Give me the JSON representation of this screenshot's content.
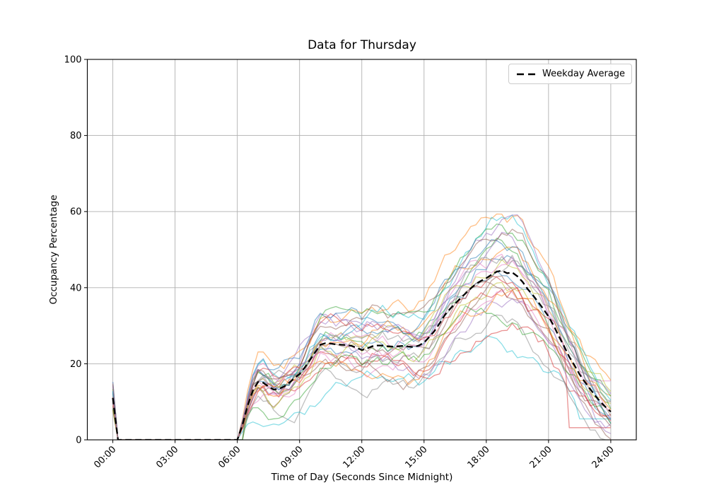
{
  "figure": {
    "background": "#ffffff"
  },
  "chart_data": {
    "type": "line",
    "title": "Data for Thursday",
    "xlabel": "Time of Day (Seconds Since Midnight)",
    "ylabel": "Occupancy Percentage",
    "ylim": [
      0,
      100
    ],
    "xlim_hours": [
      -1.23,
      25.23
    ],
    "grid": true,
    "grid_color": "#b0b0b0",
    "y_ticks": [
      0,
      20,
      40,
      60,
      80,
      100
    ],
    "x_ticks": [
      {
        "hour": 0,
        "label": "00:00"
      },
      {
        "hour": 3,
        "label": "03:00"
      },
      {
        "hour": 6,
        "label": "06:00"
      },
      {
        "hour": 9,
        "label": "09:00"
      },
      {
        "hour": 12,
        "label": "12:00"
      },
      {
        "hour": 15,
        "label": "15:00"
      },
      {
        "hour": 18,
        "label": "18:00"
      },
      {
        "hour": 21,
        "label": "21:00"
      },
      {
        "hour": 24,
        "label": "24:00"
      }
    ],
    "legend": {
      "position": "upper-right",
      "entries": [
        {
          "label": "Weekday Average",
          "color": "#000000",
          "dash": true
        }
      ]
    },
    "average_series": {
      "name": "Weekday Average",
      "color": "#000000",
      "dash_pattern": "9 5",
      "line_width": 2.3,
      "x_hours": [
        0,
        0.25,
        6,
        6.25,
        6.5,
        6.75,
        7,
        7.25,
        7.5,
        7.75,
        8,
        8.25,
        8.5,
        8.75,
        9,
        9.25,
        9.5,
        9.75,
        10,
        10.25,
        10.5,
        10.75,
        11,
        11.25,
        11.5,
        11.75,
        12,
        12.25,
        12.5,
        12.75,
        13,
        13.25,
        13.5,
        13.75,
        14,
        14.25,
        14.5,
        14.75,
        15,
        15.25,
        15.5,
        15.75,
        16,
        16.25,
        16.5,
        16.75,
        17,
        17.25,
        17.5,
        17.75,
        18,
        18.25,
        18.5,
        18.75,
        19,
        19.25,
        19.5,
        19.75,
        20,
        20.25,
        20.5,
        20.75,
        21,
        21.25,
        21.5,
        21.75,
        22,
        22.25,
        22.5,
        22.75,
        23,
        23.25,
        23.5,
        23.75,
        24
      ],
      "values": [
        11,
        0,
        0,
        4,
        9,
        13,
        15.2,
        15,
        14,
        13.2,
        13.4,
        14,
        15,
        16.2,
        17.3,
        19,
        21,
        23,
        25,
        25.4,
        25.3,
        25.1,
        25,
        24.9,
        24.7,
        24.2,
        23.6,
        24,
        24.6,
        24.8,
        24.8,
        24.6,
        24.5,
        24.6,
        24.7,
        24.5,
        24.4,
        24.8,
        25.6,
        27,
        28.6,
        30.6,
        32.8,
        34.4,
        35.8,
        37.2,
        38.5,
        39.8,
        41,
        41.8,
        42.5,
        43.4,
        44.2,
        44.5,
        43.8,
        44,
        43,
        41.5,
        39.6,
        38,
        36.2,
        34.4,
        32.4,
        30,
        27.2,
        24.6,
        21.8,
        19.6,
        17.2,
        15.2,
        13.4,
        11.6,
        10,
        8.6,
        7.4
      ]
    },
    "individual_series": {
      "count": 28,
      "alpha": 0.5,
      "line_width": 1.3,
      "colors": [
        "#1f77b4",
        "#ff7f0e",
        "#2ca02c",
        "#d62728",
        "#9467bd",
        "#8c564b",
        "#e377c2",
        "#7f7f7f",
        "#bcbd22",
        "#17becf"
      ],
      "seed": 11,
      "step_hours": 0.25,
      "scale_range": [
        0.72,
        1.28
      ],
      "noise_gain": 1.1,
      "scale_overrides": {
        "1": 1.33,
        "9": 0.52
      },
      "flat_tails": [
        {
          "index": 3,
          "from_hour": 22.0,
          "value": 3.2
        },
        {
          "index": 9,
          "from_hour": 22.5,
          "value": 5.5
        },
        {
          "index": 6,
          "from_hour": 22.75,
          "value": 15.5
        }
      ],
      "midnight_spike_range": [
        7.5,
        15.5
      ],
      "start_hour_choices": [
        6,
        6,
        6.25
      ]
    }
  }
}
